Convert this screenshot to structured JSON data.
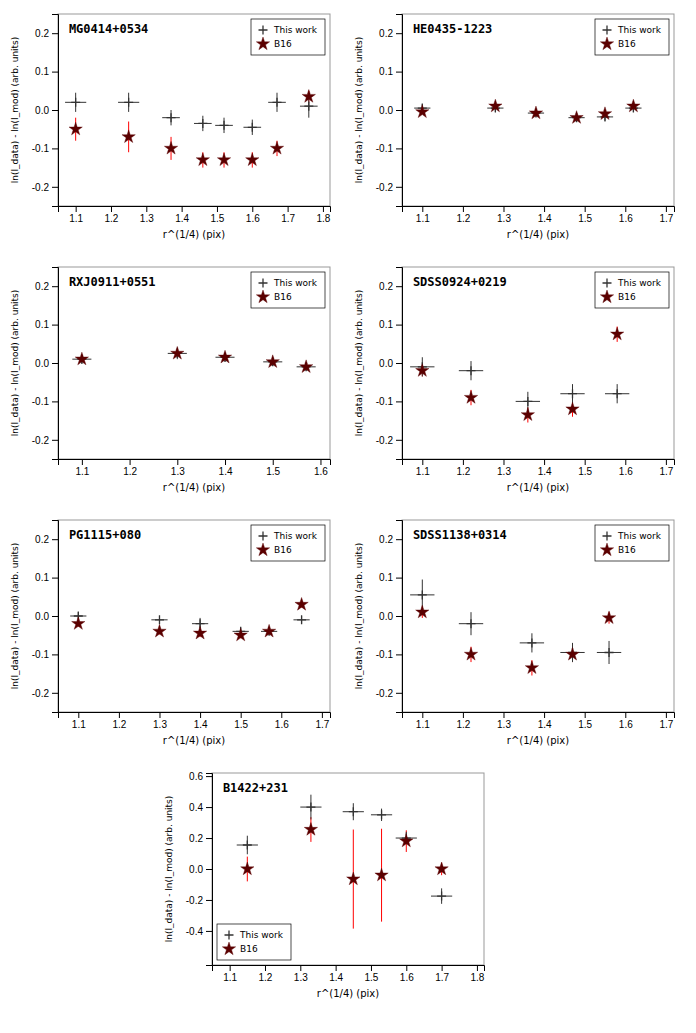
{
  "chart_data": [
    {
      "type": "scatter",
      "title": "MG0414+0534",
      "x_label": "r^(1/4) (pix)",
      "y_label": "ln(I_data) - ln(I_mod) (arb. units)",
      "xlim": [
        1.05,
        1.82
      ],
      "xticks": [
        1.1,
        1.2,
        1.3,
        1.4,
        1.5,
        1.6,
        1.7,
        1.8
      ],
      "ylim": [
        -0.25,
        0.25
      ],
      "yticks": [
        -0.2,
        -0.1,
        {
          "value": 0.0,
          "label": "0.0"
        },
        0.1,
        0.2
      ],
      "legend": "upper right",
      "series": [
        {
          "name": "This work",
          "color": "#333333",
          "marker": "plus",
          "x": [
            1.1,
            1.25,
            1.37,
            1.46,
            1.52,
            1.6,
            1.67,
            1.76
          ],
          "values": [
            0.02,
            0.02,
            -0.02,
            -0.035,
            -0.04,
            -0.045,
            0.02,
            0.01
          ],
          "x_error": [
            0.03,
            0.03,
            0.025,
            0.025,
            0.025,
            0.025,
            0.025,
            0.025
          ],
          "error": [
            0.025,
            0.025,
            0.02,
            0.02,
            0.02,
            0.02,
            0.025,
            0.03
          ]
        },
        {
          "name": "B16",
          "color": "#5B0000",
          "error_color": "#FF0000",
          "marker": "star",
          "x": [
            1.1,
            1.25,
            1.37,
            1.46,
            1.52,
            1.6,
            1.67,
            1.76
          ],
          "values": [
            -0.05,
            -0.07,
            -0.1,
            -0.13,
            -0.13,
            -0.13,
            -0.1,
            0.035
          ],
          "error": [
            0.03,
            0.04,
            0.03,
            0.02,
            0.02,
            0.02,
            0.02,
            0.015
          ]
        }
      ]
    },
    {
      "type": "scatter",
      "title": "HE0435-1223",
      "x_label": "r^(1/4) (pix)",
      "y_label": "ln(I_data) - ln(I_mod) (arb. units)",
      "xlim": [
        1.05,
        1.72
      ],
      "xticks": [
        1.1,
        1.2,
        1.3,
        1.4,
        1.5,
        1.6,
        1.7
      ],
      "ylim": [
        -0.25,
        0.25
      ],
      "yticks": [
        -0.2,
        -0.1,
        {
          "value": 0.0,
          "label": "0.0"
        },
        0.1,
        0.2
      ],
      "legend": "upper right",
      "series": [
        {
          "name": "This work",
          "color": "#333333",
          "marker": "plus",
          "x": [
            1.1,
            1.28,
            1.38,
            1.48,
            1.55,
            1.62
          ],
          "values": [
            0.005,
            0.005,
            -0.008,
            -0.02,
            -0.018,
            0.005
          ],
          "x_error": [
            0.02,
            0.02,
            0.02,
            0.02,
            0.02,
            0.02
          ],
          "error": [
            0.01,
            0.01,
            0.01,
            0.01,
            0.01,
            0.01
          ]
        },
        {
          "name": "B16",
          "color": "#5B0000",
          "error_color": "#FF0000",
          "marker": "star",
          "x": [
            1.1,
            1.28,
            1.38,
            1.48,
            1.55,
            1.62
          ],
          "values": [
            -0.005,
            0.01,
            -0.008,
            -0.02,
            -0.01,
            0.01
          ],
          "error": [
            0.005,
            0.005,
            0.005,
            0.005,
            0.005,
            0.005
          ]
        }
      ]
    },
    {
      "type": "scatter",
      "title": "RXJ0911+0551",
      "x_label": "r^(1/4) (pix)",
      "y_label": "ln(I_data) - ln(I_mod) (arb. units)",
      "xlim": [
        1.05,
        1.62
      ],
      "xticks": [
        1.1,
        1.2,
        1.3,
        1.4,
        1.5,
        1.6
      ],
      "ylim": [
        -0.25,
        0.25
      ],
      "yticks": [
        -0.2,
        -0.1,
        {
          "value": 0.0,
          "label": "0.0"
        },
        0.1,
        0.2
      ],
      "legend": "upper right",
      "series": [
        {
          "name": "This work",
          "color": "#333333",
          "marker": "plus",
          "x": [
            1.1,
            1.3,
            1.4,
            1.5,
            1.57
          ],
          "values": [
            0.01,
            0.025,
            0.015,
            0.003,
            -0.01
          ],
          "x_error": [
            0.02,
            0.02,
            0.02,
            0.02,
            0.02
          ],
          "error": [
            0.012,
            0.015,
            0.012,
            0.01,
            0.01
          ]
        },
        {
          "name": "B16",
          "color": "#5B0000",
          "error_color": "#FF0000",
          "marker": "star",
          "x": [
            1.1,
            1.3,
            1.4,
            1.5,
            1.57
          ],
          "values": [
            0.01,
            0.025,
            0.015,
            0.003,
            -0.01
          ],
          "error": [
            0.005,
            0.005,
            0.005,
            0.005,
            0.005
          ]
        }
      ]
    },
    {
      "type": "scatter",
      "title": "SDSS0924+0219",
      "x_label": "r^(1/4) (pix)",
      "y_label": "ln(I_data) - ln(I_mod) (arb. units)",
      "xlim": [
        1.05,
        1.72
      ],
      "xticks": [
        1.1,
        1.2,
        1.3,
        1.4,
        1.5,
        1.6,
        1.7
      ],
      "ylim": [
        -0.25,
        0.25
      ],
      "yticks": [
        -0.2,
        -0.1,
        {
          "value": 0.0,
          "label": "0.0"
        },
        0.1,
        0.2
      ],
      "legend": "upper right",
      "series": [
        {
          "name": "This work",
          "color": "#333333",
          "marker": "plus",
          "x": [
            1.1,
            1.22,
            1.36,
            1.47,
            1.58
          ],
          "values": [
            -0.01,
            -0.02,
            -0.1,
            -0.08,
            -0.08
          ],
          "x_error": [
            0.03,
            0.03,
            0.03,
            0.03,
            0.03
          ],
          "error": [
            0.025,
            0.025,
            0.025,
            0.025,
            0.025
          ]
        },
        {
          "name": "B16",
          "color": "#5B0000",
          "error_color": "#FF0000",
          "marker": "star",
          "x": [
            1.1,
            1.22,
            1.36,
            1.47,
            1.58
          ],
          "values": [
            -0.02,
            -0.09,
            -0.135,
            -0.12,
            0.075
          ],
          "error": [
            0.015,
            0.02,
            0.02,
            0.02,
            0.02
          ]
        }
      ]
    },
    {
      "type": "scatter",
      "title": "PG1115+080",
      "x_label": "r^(1/4) (pix)",
      "y_label": "ln(I_data) - ln(I_mod) (arb. units)",
      "xlim": [
        1.05,
        1.72
      ],
      "xticks": [
        1.1,
        1.2,
        1.3,
        1.4,
        1.5,
        1.6,
        1.7
      ],
      "ylim": [
        -0.25,
        0.25
      ],
      "yticks": [
        -0.2,
        -0.1,
        {
          "value": 0.0,
          "label": "0.0"
        },
        0.1,
        0.2
      ],
      "legend": "upper right",
      "series": [
        {
          "name": "This work",
          "color": "#333333",
          "marker": "plus",
          "x": [
            1.1,
            1.3,
            1.4,
            1.5,
            1.57,
            1.65
          ],
          "values": [
            0.0,
            -0.01,
            -0.02,
            -0.04,
            -0.04,
            -0.01
          ],
          "x_error": [
            0.02,
            0.02,
            0.02,
            0.02,
            0.02,
            0.02
          ],
          "error": [
            0.01,
            0.01,
            0.015,
            0.01,
            0.01,
            0.01
          ]
        },
        {
          "name": "B16",
          "color": "#5B0000",
          "error_color": "#FF0000",
          "marker": "star",
          "x": [
            1.1,
            1.3,
            1.4,
            1.5,
            1.57,
            1.65
          ],
          "values": [
            -0.02,
            -0.04,
            -0.045,
            -0.05,
            -0.04,
            0.03
          ],
          "error": [
            0.008,
            0.008,
            0.01,
            0.008,
            0.008,
            0.008
          ]
        }
      ]
    },
    {
      "type": "scatter",
      "title": "SDSS1138+0314",
      "x_label": "r^(1/4) (pix)",
      "y_label": "ln(I_data) - ln(I_mod) (arb. units)",
      "xlim": [
        1.05,
        1.72
      ],
      "xticks": [
        1.1,
        1.2,
        1.3,
        1.4,
        1.5,
        1.6,
        1.7
      ],
      "ylim": [
        -0.25,
        0.25
      ],
      "yticks": [
        -0.2,
        -0.1,
        {
          "value": 0.0,
          "label": "0.0"
        },
        0.1,
        0.2
      ],
      "legend": "upper right",
      "series": [
        {
          "name": "This work",
          "color": "#333333",
          "marker": "plus",
          "x": [
            1.1,
            1.22,
            1.37,
            1.47,
            1.56
          ],
          "values": [
            0.055,
            -0.02,
            -0.07,
            -0.095,
            -0.095
          ],
          "x_error": [
            0.03,
            0.03,
            0.03,
            0.03,
            0.03
          ],
          "error": [
            0.04,
            0.03,
            0.025,
            0.025,
            0.03
          ]
        },
        {
          "name": "B16",
          "color": "#5B0000",
          "error_color": "#FF0000",
          "marker": "star",
          "x": [
            1.1,
            1.22,
            1.37,
            1.47,
            1.56
          ],
          "values": [
            0.01,
            -0.1,
            -0.135,
            -0.1,
            -0.005
          ],
          "error": [
            0.015,
            0.02,
            0.02,
            0.02,
            0.015
          ]
        }
      ]
    },
    {
      "type": "scatter",
      "title": "B1422+231",
      "x_label": "r^(1/4) (pix)",
      "y_label": "ln(I_data) - ln(I_mod) (arb. units)",
      "xlim": [
        1.05,
        1.82
      ],
      "xticks": [
        1.1,
        1.2,
        1.3,
        1.4,
        1.5,
        1.6,
        1.7,
        1.8
      ],
      "ylim": [
        -0.62,
        0.62
      ],
      "yticks": [
        -0.4,
        -0.2,
        {
          "value": 0.0,
          "label": "0.0"
        },
        0.2,
        0.4,
        0.6
      ],
      "legend": "lower left",
      "series": [
        {
          "name": "This work",
          "color": "#333333",
          "marker": "plus",
          "x": [
            1.15,
            1.33,
            1.45,
            1.53,
            1.6,
            1.7
          ],
          "values": [
            0.155,
            0.4,
            0.37,
            0.35,
            0.2,
            -0.175
          ],
          "x_error": [
            0.03,
            0.03,
            0.03,
            0.03,
            0.03,
            0.03
          ],
          "error": [
            0.06,
            0.08,
            0.055,
            0.04,
            0.04,
            0.05
          ]
        },
        {
          "name": "B16",
          "color": "#5B0000",
          "error_color": "#FF0000",
          "marker": "star",
          "x": [
            1.15,
            1.33,
            1.45,
            1.53,
            1.6,
            1.7
          ],
          "values": [
            0.0,
            0.255,
            -0.065,
            -0.04,
            0.18,
            0.0
          ],
          "error": [
            0.08,
            0.08,
            0.32,
            0.3,
            0.07,
            0.04
          ]
        }
      ]
    }
  ]
}
